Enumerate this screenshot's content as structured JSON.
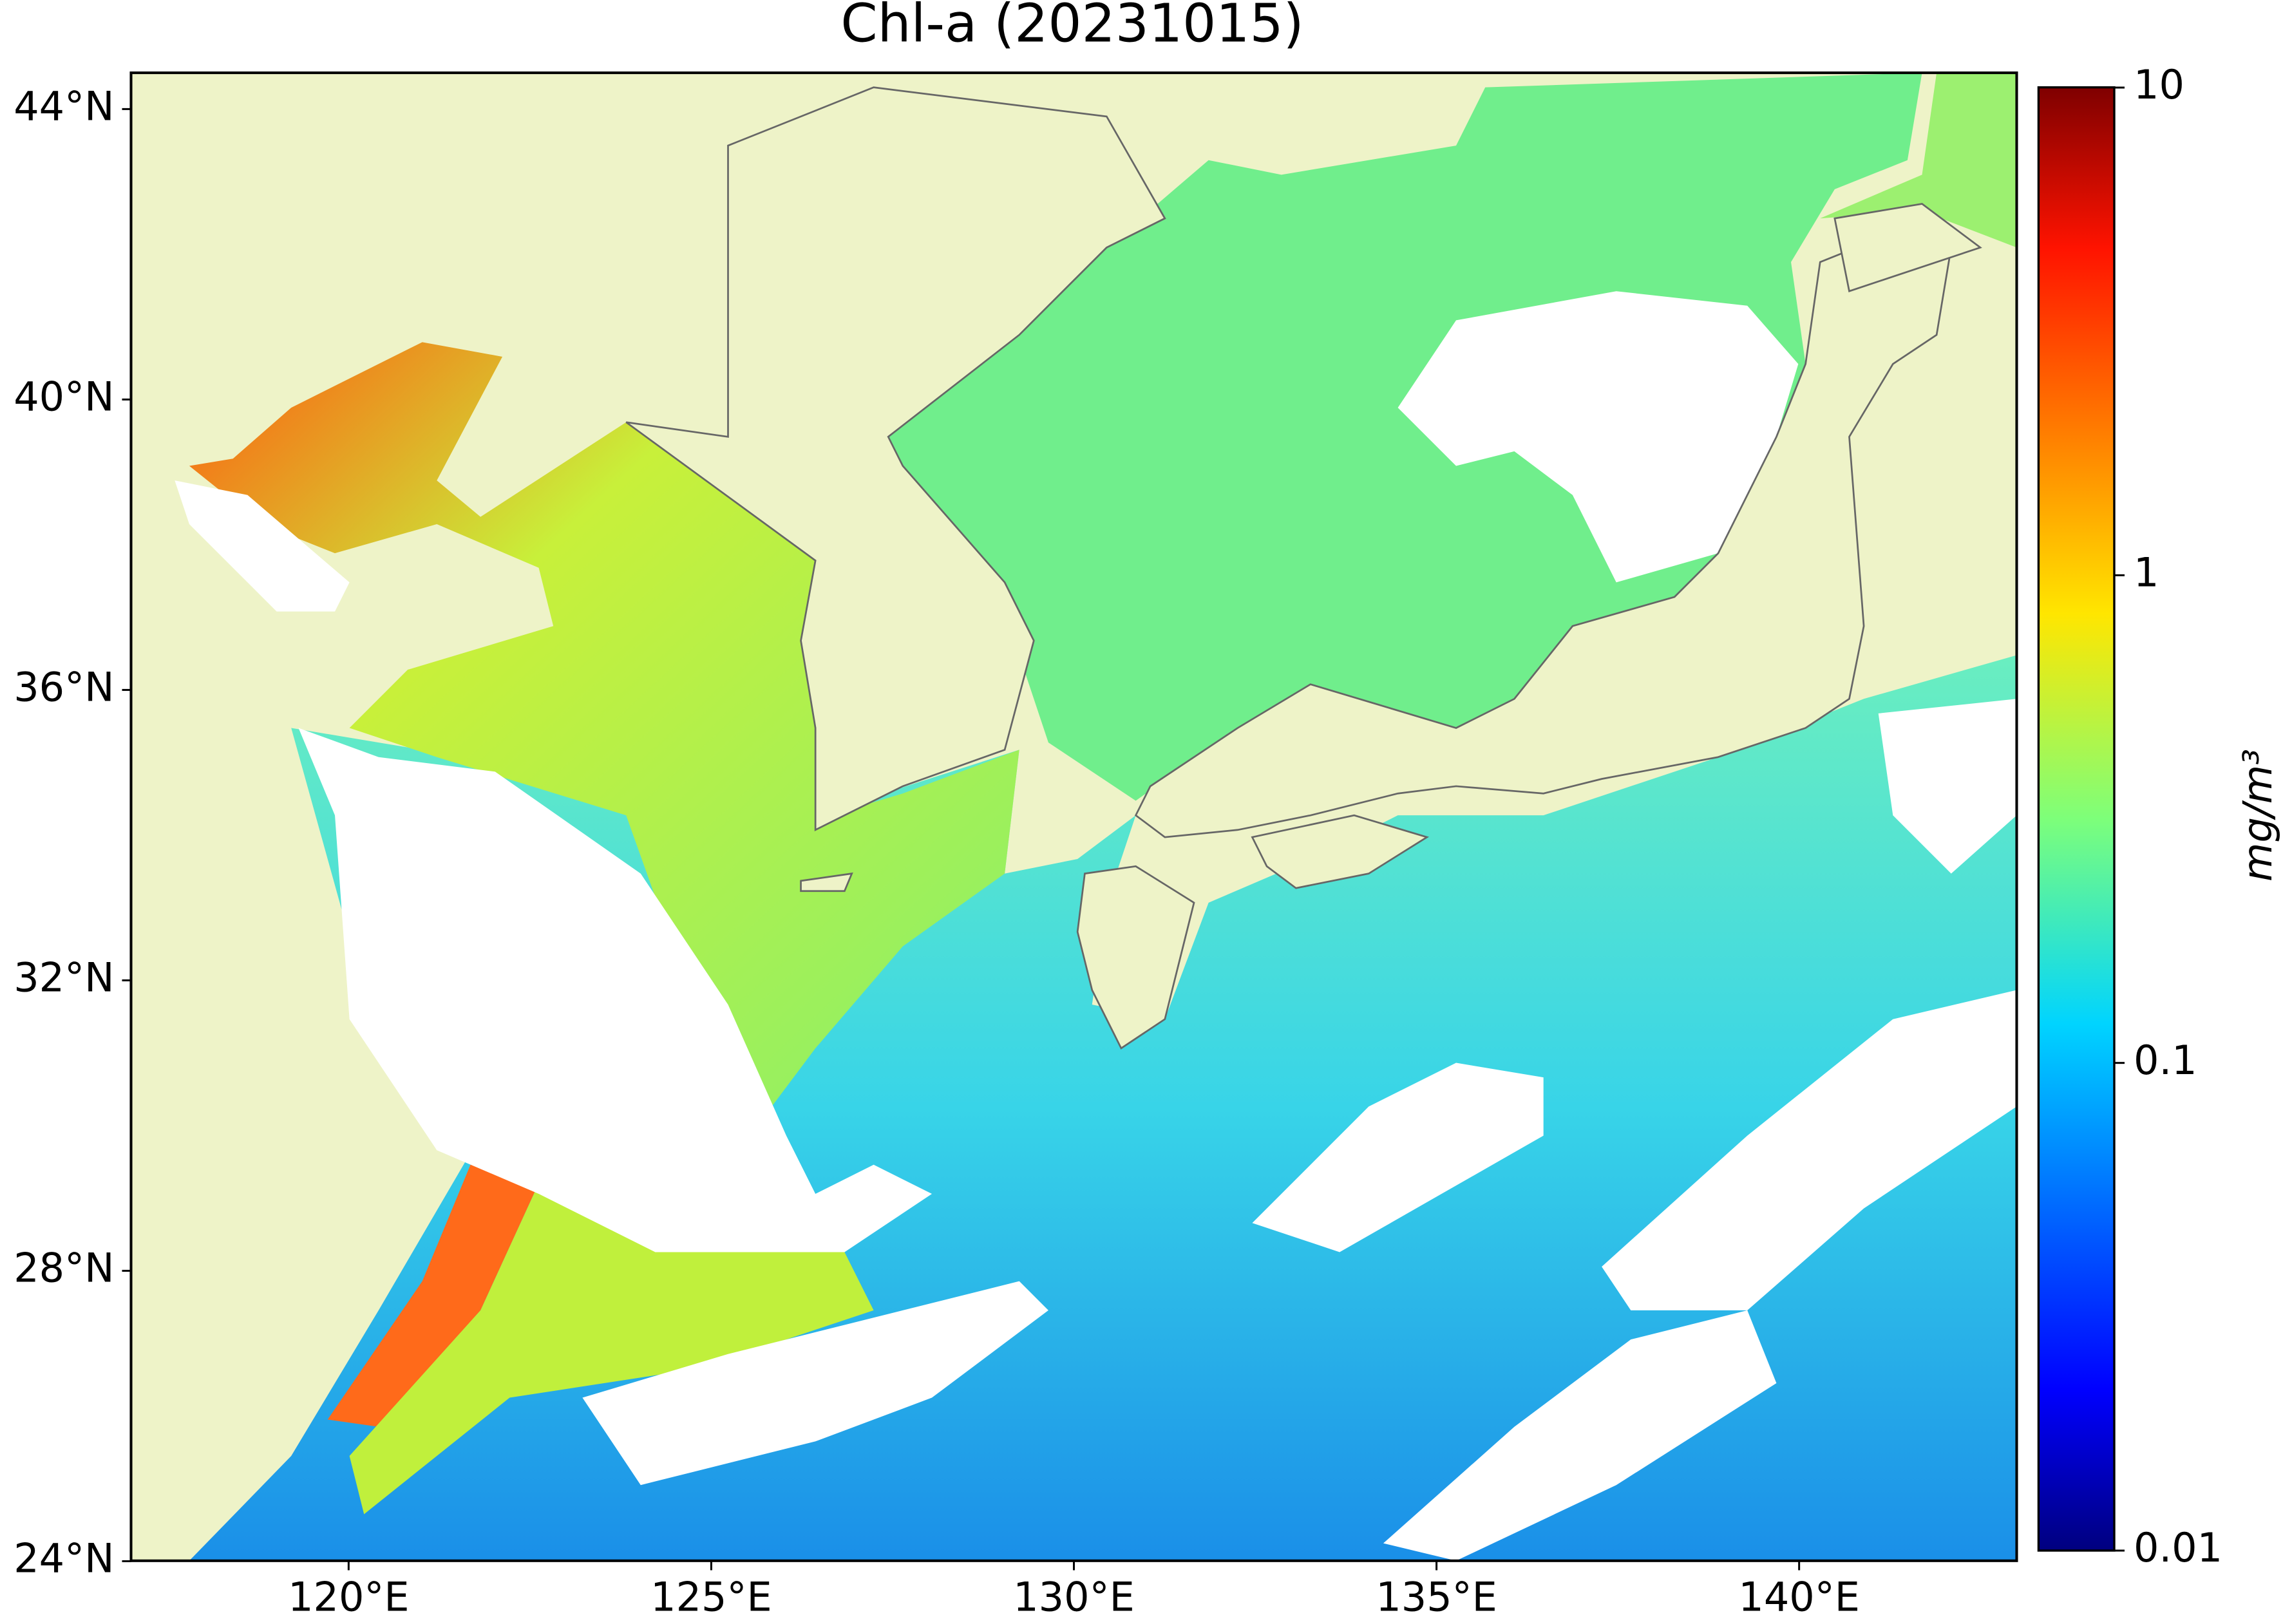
{
  "map": {
    "title": "Chl-a (20231015)",
    "xlim": [
      117,
      143
    ],
    "ylim": [
      24,
      44.5
    ],
    "lon_ticks": [
      {
        "value": 120,
        "label": "120°E"
      },
      {
        "value": 125,
        "label": "125°E"
      },
      {
        "value": 130,
        "label": "130°E"
      },
      {
        "value": 135,
        "label": "135°E"
      },
      {
        "value": 140,
        "label": "140°E"
      }
    ],
    "lat_ticks": [
      {
        "value": 24,
        "label": "24°N"
      },
      {
        "value": 28,
        "label": "28°N"
      },
      {
        "value": 32,
        "label": "32°N"
      },
      {
        "value": 36,
        "label": "36°N"
      },
      {
        "value": 40,
        "label": "40°N"
      },
      {
        "value": 44,
        "label": "44°N"
      }
    ],
    "colorbar": {
      "label": "mg/m³",
      "scale": "log",
      "colormap": "jet",
      "lim": [
        0.01,
        10
      ],
      "ticks": [
        0.01,
        0.1,
        1,
        10
      ]
    }
  }
}
